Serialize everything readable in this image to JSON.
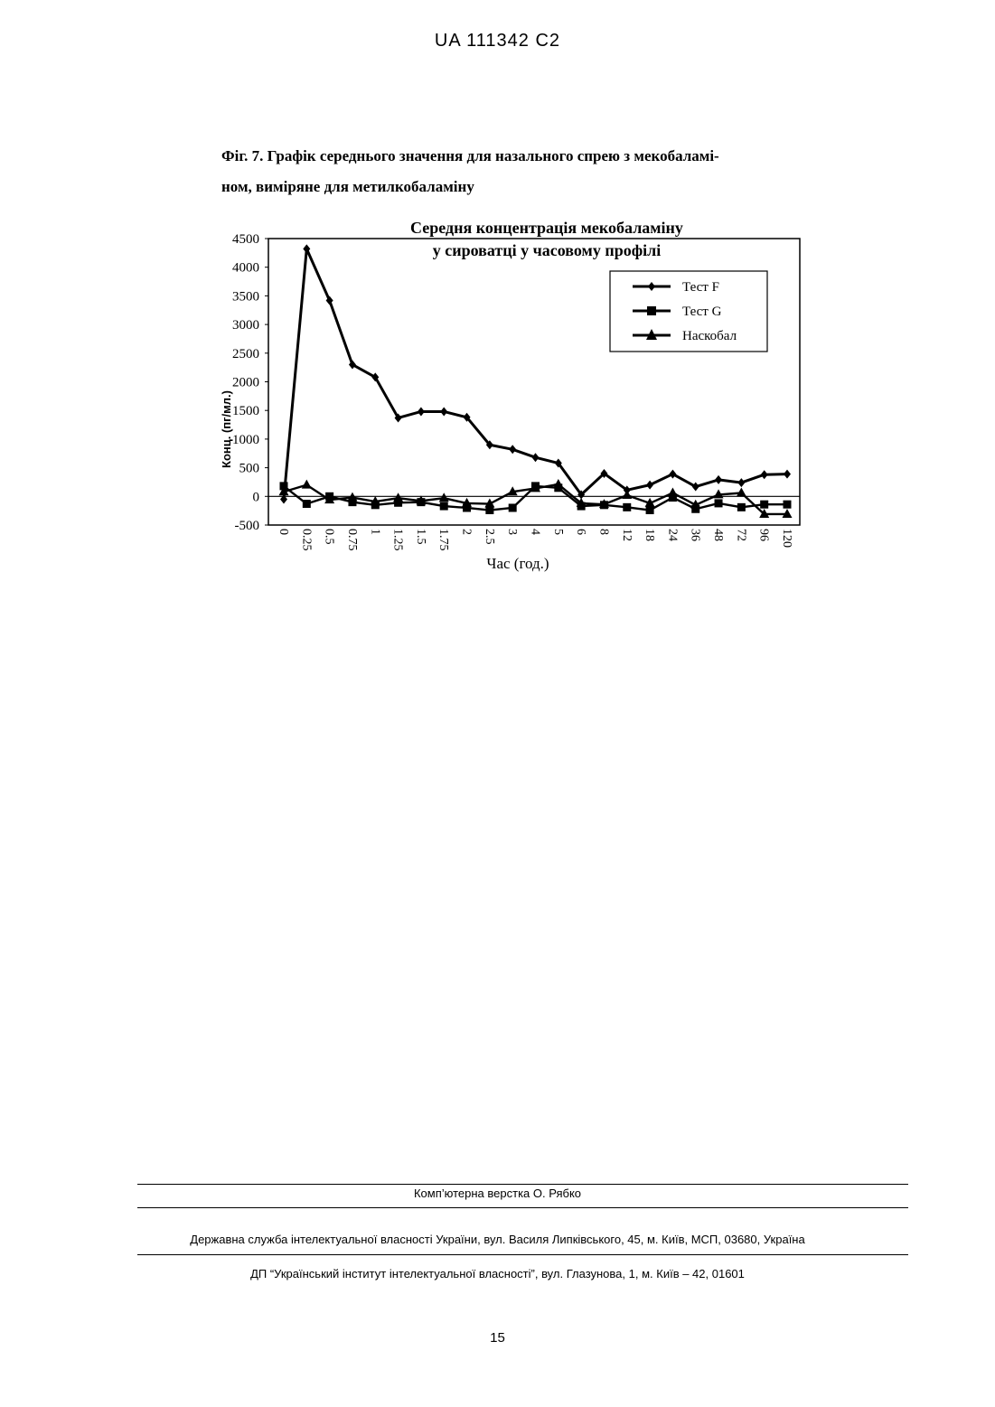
{
  "header": {
    "patent_id": "UA   111342   C2"
  },
  "caption": {
    "line1": "Фіг. 7. Графік середнього значення для назального спрею з мекобаламі-",
    "line2": "ном, виміряне для метилкобаламіну"
  },
  "chart_data": {
    "type": "line",
    "title_line1": "Середня концентрація мекобаламіну",
    "title_line2": "у сироватці у часовому профілі",
    "xlabel": "Час (год.)",
    "ylabel": "Конц. (пг/мл.)",
    "ylim": [
      -500,
      4500
    ],
    "yticks": [
      "4500",
      "4000",
      "3500",
      "3000",
      "2500",
      "2000",
      "1500",
      "1000",
      "500",
      "0",
      "-500"
    ],
    "categories": [
      "0",
      "0.25",
      "0.5",
      "0.75",
      "1",
      "1.25",
      "1.5",
      "1.75",
      "2",
      "2.5",
      "3",
      "4",
      "5",
      "6",
      "8",
      "12",
      "18",
      "24",
      "36",
      "48",
      "72",
      "96",
      "120"
    ],
    "series": [
      {
        "name": "Тест F",
        "marker": "diamond",
        "values": [
          -50,
          4320,
          3420,
          2300,
          2080,
          1370,
          1480,
          1480,
          1380,
          900,
          820,
          680,
          580,
          30,
          400,
          110,
          200,
          390,
          170,
          290,
          240,
          380,
          390
        ]
      },
      {
        "name": "Тест G",
        "marker": "square",
        "values": [
          180,
          -130,
          0,
          -100,
          -150,
          -110,
          -100,
          -170,
          -200,
          -240,
          -200,
          180,
          150,
          -170,
          -150,
          -190,
          -240,
          -20,
          -220,
          -120,
          -190,
          -140,
          -140
        ]
      },
      {
        "name": "Наскобал",
        "marker": "triangle",
        "values": [
          80,
          200,
          -60,
          -20,
          -90,
          -30,
          -80,
          -30,
          -120,
          -130,
          80,
          140,
          210,
          -120,
          -140,
          20,
          -120,
          60,
          -150,
          30,
          60,
          -310,
          -310
        ]
      }
    ],
    "legend": "top-right",
    "grid": false
  },
  "footer": {
    "typesetting": "Комп’ютерна верстка О. Рябко",
    "agency": "Державна служба інтелектуальної власності України, вул. Василя Липківського, 45, м. Київ, МСП, 03680, Україна",
    "institute": "ДП “Український інститут інтелектуальної власності”, вул. Глазунова, 1, м. Київ – 42, 01601"
  },
  "page_number": "15"
}
